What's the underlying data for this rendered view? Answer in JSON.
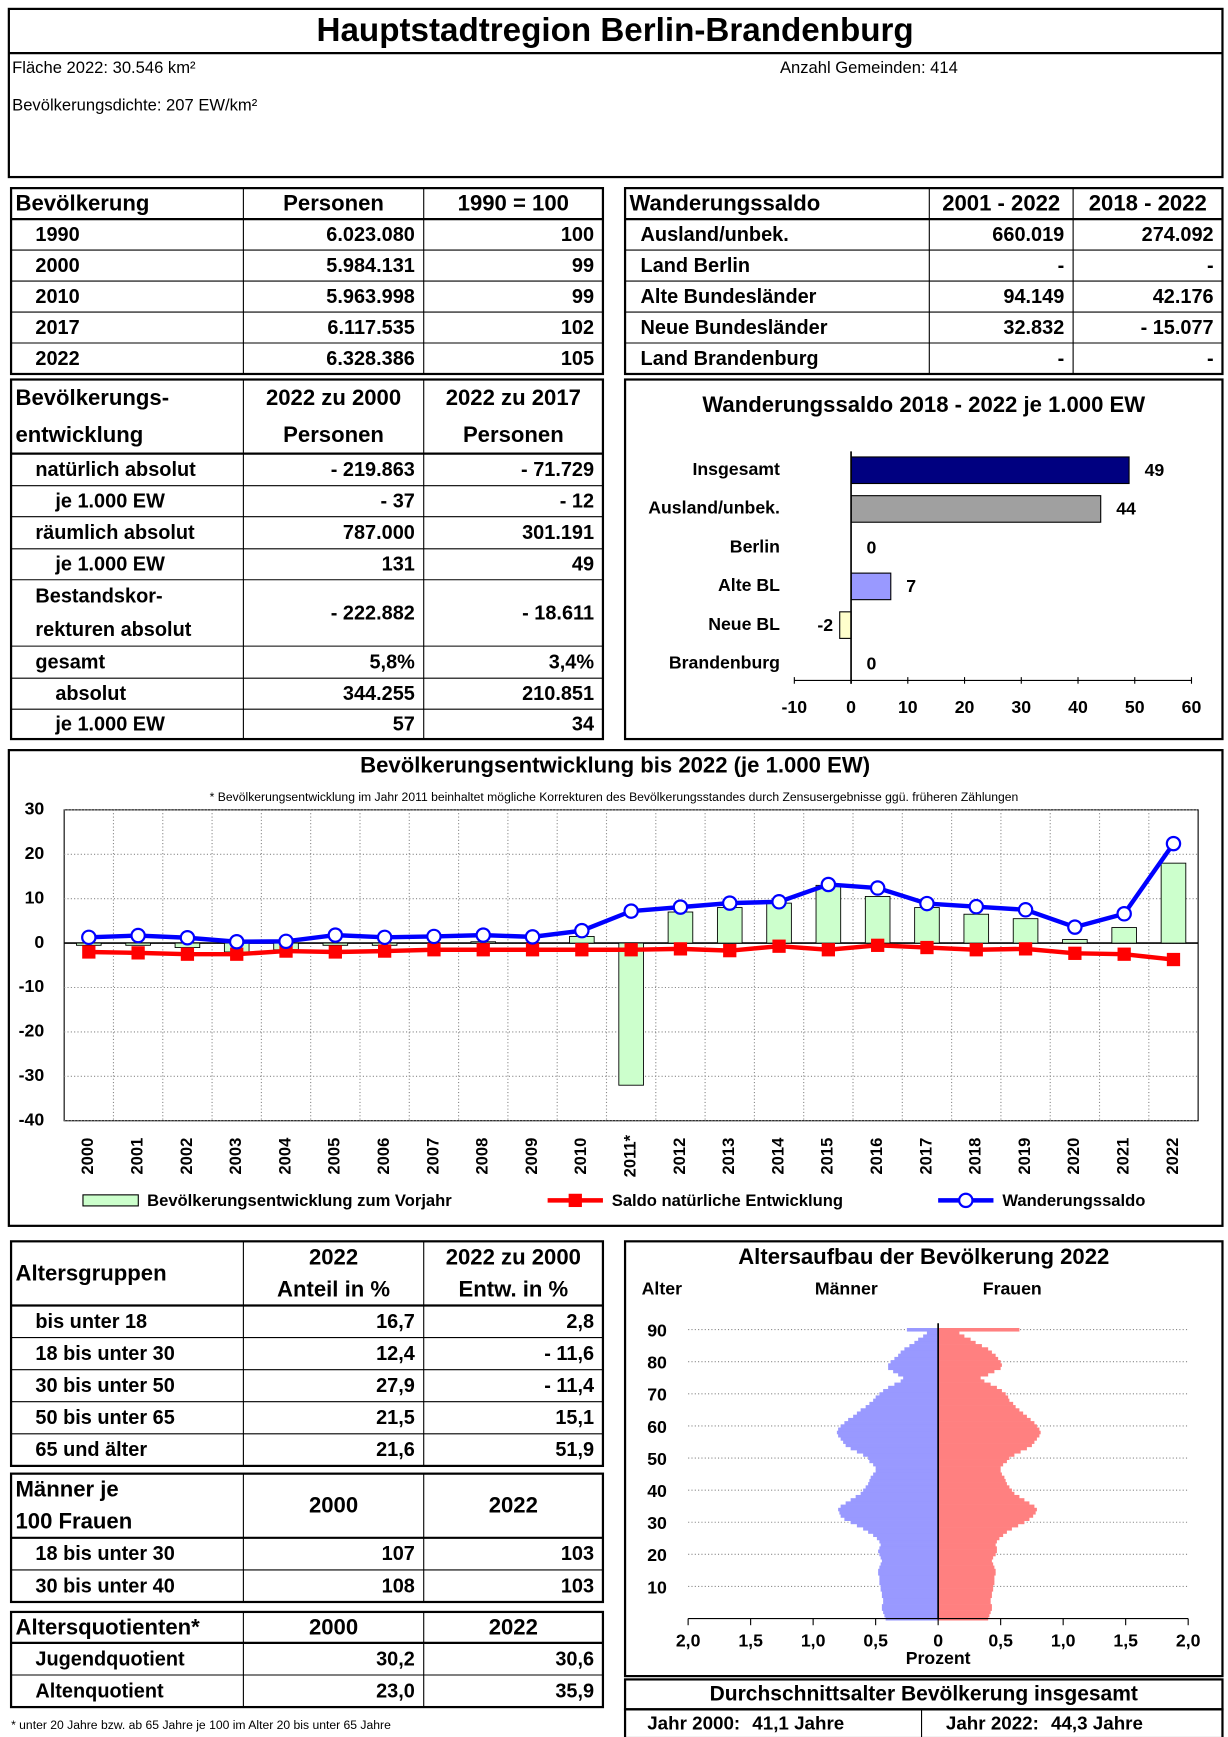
{
  "header": {
    "title": "Hauptstadtregion Berlin-Brandenburg",
    "area": "Fläche 2022: 30.546 km²",
    "municipalities": "Anzahl Gemeinden: 414",
    "density": "Bevölkerungsdichte: 207 EW/km²"
  },
  "population": {
    "header": [
      "Bevölkerung",
      "Personen",
      "1990 = 100"
    ],
    "rows": [
      [
        "1990",
        "6.023.080",
        "100"
      ],
      [
        "2000",
        "5.984.131",
        "99"
      ],
      [
        "2010",
        "5.963.998",
        "99"
      ],
      [
        "2017",
        "6.117.535",
        "102"
      ],
      [
        "2022",
        "6.328.386",
        "105"
      ]
    ]
  },
  "migration": {
    "header": [
      "Wanderungssaldo",
      "2001 - 2022",
      "2018 - 2022"
    ],
    "rows": [
      [
        "Ausland/unbek.",
        "660.019",
        "274.092"
      ],
      [
        "Land Berlin",
        "-",
        "-"
      ],
      [
        "Alte Bundesländer",
        "94.149",
        "42.176"
      ],
      [
        "Neue Bundesländer",
        "32.832",
        "- 15.077"
      ],
      [
        "Land Brandenburg",
        "-",
        "-"
      ]
    ]
  },
  "development": {
    "header": [
      [
        "Bevölkerungs-",
        "entwicklung"
      ],
      [
        "2022 zu 2000",
        "Personen"
      ],
      [
        "2022 zu 2017",
        "Personen"
      ]
    ],
    "rows": [
      [
        "natürlich absolut",
        "- 219.863",
        "- 71.729"
      ],
      [
        "je 1.000 EW",
        "- 37",
        "- 12"
      ],
      [
        "räumlich absolut",
        "787.000",
        "301.191"
      ],
      [
        "je 1.000 EW",
        "131",
        "49"
      ],
      [
        [
          "Bestandskor-",
          "rekturen absolut"
        ],
        "- 222.882",
        "- 18.611"
      ],
      [
        "gesamt",
        "5,8%",
        "3,4%"
      ],
      [
        "absolut",
        "344.255",
        "210.851"
      ],
      [
        "je 1.000 EW",
        "57",
        "34"
      ]
    ]
  },
  "age_groups": {
    "header": [
      [
        "Altersgruppen"
      ],
      [
        "2022",
        "Anteil in %"
      ],
      [
        "2022 zu 2000",
        "Entw. in %"
      ]
    ],
    "rows": [
      [
        "bis unter 18",
        "16,7",
        "2,8"
      ],
      [
        "18 bis unter 30",
        "12,4",
        "- 11,6"
      ],
      [
        "30 bis unter 50",
        "27,9",
        "- 11,4"
      ],
      [
        "50 bis unter 65",
        "21,5",
        "15,1"
      ],
      [
        "65 und älter",
        "21,6",
        "51,9"
      ]
    ]
  },
  "sex_ratio": {
    "header": [
      [
        "Männer je",
        "100 Frauen"
      ],
      "2000",
      "2022"
    ],
    "rows": [
      [
        "18 bis unter 30",
        "107",
        "103"
      ],
      [
        "30 bis unter 40",
        "108",
        "103"
      ]
    ]
  },
  "age_ratios": {
    "header": [
      "Altersquotienten*",
      "2000",
      "2022"
    ],
    "rows": [
      [
        "Jugendquotient",
        "30,2",
        "30,6"
      ],
      [
        "Altenquotient",
        "23,0",
        "35,9"
      ]
    ],
    "footnote": "* unter 20 Jahre bzw. ab 65 Jahre je 100 im Alter 20 bis unter 65 Jahre"
  },
  "mean_age": {
    "title": "Durchschnittsalter Bevölkerung insgesamt",
    "cells": [
      [
        "Jahr 2000:",
        "41,1 Jahre"
      ],
      [
        "Jahr 2022:",
        "44,3 Jahre"
      ]
    ]
  },
  "chart_data": [
    {
      "type": "hbar",
      "title": "Wanderungssaldo 2018 - 2022 je 1.000 EW",
      "categories": [
        "Insgesamt",
        "Ausland/unbek.",
        "Berlin",
        "Alte BL",
        "Neue BL",
        "Brandenburg"
      ],
      "values": [
        49,
        44,
        0,
        7,
        -2,
        0
      ],
      "colors": [
        "#000080",
        "#a0a0a0",
        "#ffffff",
        "#9999ff",
        "#ffffcc",
        "#ffffff"
      ],
      "xlim": [
        -10,
        60
      ],
      "xticks": [
        -10,
        0,
        10,
        20,
        30,
        40,
        50,
        60
      ]
    },
    {
      "type": "combo",
      "title": "Bevölkerungsentwicklung bis 2022 (je 1.000 EW)",
      "note": "* Bevölkerungsentwicklung im Jahr 2011 beinhaltet mögliche Korrekturen des Bevölkerungsstandes durch Zensusergebnisse ggü. früheren Zählungen",
      "categories": [
        "2000",
        "2001",
        "2002",
        "2003",
        "2004",
        "2005",
        "2006",
        "2007",
        "2008",
        "2009",
        "2010",
        "2011*",
        "2012",
        "2013",
        "2014",
        "2015",
        "2016",
        "2017",
        "2018",
        "2019",
        "2020",
        "2021",
        "2022"
      ],
      "ylim": [
        -40,
        30
      ],
      "yticks": [
        -40,
        -30,
        -20,
        -10,
        0,
        10,
        20,
        30
      ],
      "grid": true,
      "series": [
        {
          "name": "Bevölkerungsentwicklung zum Vorjahr",
          "type": "bar",
          "color": "#ccffcc",
          "values": [
            -0.5,
            -0.5,
            -1,
            -2,
            -1.5,
            -0.5,
            -0.5,
            0,
            0.3,
            0,
            1.5,
            -32,
            7,
            8,
            9,
            13,
            10.5,
            8,
            6.5,
            5.5,
            0.8,
            3.5,
            18
          ]
        },
        {
          "name": "Saldo natürliche Entwicklung",
          "type": "line",
          "marker": "square",
          "color": "#ff0000",
          "values": [
            -2,
            -2.2,
            -2.5,
            -2.5,
            -1.8,
            -2,
            -1.8,
            -1.5,
            -1.5,
            -1.5,
            -1.5,
            -1.5,
            -1.3,
            -1.7,
            -0.7,
            -1.5,
            -0.5,
            -1,
            -1.5,
            -1.3,
            -2.3,
            -2.5,
            -3.7
          ]
        },
        {
          "name": "Wanderungssaldo",
          "type": "line",
          "marker": "circle",
          "color": "#0000ff",
          "values": [
            1.3,
            1.7,
            1.2,
            0.3,
            0.4,
            1.8,
            1.3,
            1.5,
            1.8,
            1.4,
            2.8,
            7.2,
            8.1,
            9,
            9.3,
            13.2,
            12.4,
            8.9,
            8.2,
            7.5,
            3.6,
            6.6,
            22.4
          ]
        }
      ]
    },
    {
      "type": "pyramid",
      "title": "Altersaufbau der Bevölkerung 2022",
      "ylabel": "Alter",
      "xlabel": "Prozent",
      "ylim": [
        0,
        92
      ],
      "yticks": [
        10,
        20,
        30,
        40,
        50,
        60,
        70,
        80,
        90
      ],
      "xlim": [
        -2,
        2
      ],
      "xticks": [
        {
          "value": -2,
          "label": "2,0"
        },
        {
          "value": -1.5,
          "label": "1,5"
        },
        {
          "value": -1,
          "label": "1,0"
        },
        {
          "value": -0.5,
          "label": "0,5"
        },
        0,
        {
          "value": 0.5,
          "label": "0,5"
        },
        {
          "value": 1,
          "label": "1,0"
        },
        {
          "value": 1.5,
          "label": "1,5"
        },
        {
          "value": 2,
          "label": "2,0"
        }
      ],
      "ages": [
        0,
        1,
        2,
        3,
        4,
        5,
        6,
        7,
        8,
        9,
        10,
        11,
        12,
        13,
        14,
        15,
        16,
        17,
        18,
        19,
        20,
        21,
        22,
        23,
        24,
        25,
        26,
        27,
        28,
        29,
        30,
        31,
        32,
        33,
        34,
        35,
        36,
        37,
        38,
        39,
        40,
        41,
        42,
        43,
        44,
        45,
        46,
        47,
        48,
        49,
        50,
        51,
        52,
        53,
        54,
        55,
        56,
        57,
        58,
        59,
        60,
        61,
        62,
        63,
        64,
        65,
        66,
        67,
        68,
        69,
        70,
        71,
        72,
        73,
        74,
        75,
        76,
        77,
        78,
        79,
        80,
        81,
        82,
        83,
        84,
        85,
        86,
        87,
        88,
        89,
        90
      ],
      "series": [
        {
          "name": "Männer",
          "side": "left",
          "color": "#9999ff",
          "values": [
            0.42,
            0.43,
            0.44,
            0.45,
            0.45,
            0.44,
            0.44,
            0.45,
            0.45,
            0.46,
            0.46,
            0.47,
            0.47,
            0.47,
            0.48,
            0.48,
            0.47,
            0.46,
            0.45,
            0.46,
            0.47,
            0.48,
            0.47,
            0.46,
            0.47,
            0.49,
            0.52,
            0.56,
            0.6,
            0.65,
            0.7,
            0.75,
            0.78,
            0.79,
            0.8,
            0.78,
            0.74,
            0.7,
            0.66,
            0.62,
            0.6,
            0.58,
            0.56,
            0.55,
            0.54,
            0.52,
            0.5,
            0.5,
            0.52,
            0.55,
            0.56,
            0.6,
            0.65,
            0.7,
            0.74,
            0.76,
            0.78,
            0.8,
            0.81,
            0.8,
            0.78,
            0.75,
            0.72,
            0.68,
            0.65,
            0.62,
            0.58,
            0.55,
            0.52,
            0.5,
            0.47,
            0.44,
            0.4,
            0.35,
            0.3,
            0.28,
            0.32,
            0.36,
            0.4,
            0.4,
            0.38,
            0.35,
            0.32,
            0.3,
            0.27,
            0.23,
            0.19,
            0.16,
            0.12,
            0.09,
            0.25
          ]
        },
        {
          "name": "Frauen",
          "side": "right",
          "color": "#ff8080",
          "values": [
            0.4,
            0.41,
            0.42,
            0.43,
            0.43,
            0.42,
            0.42,
            0.43,
            0.43,
            0.44,
            0.44,
            0.45,
            0.45,
            0.45,
            0.46,
            0.46,
            0.45,
            0.44,
            0.43,
            0.44,
            0.46,
            0.47,
            0.47,
            0.46,
            0.47,
            0.49,
            0.52,
            0.55,
            0.59,
            0.64,
            0.69,
            0.73,
            0.76,
            0.78,
            0.79,
            0.77,
            0.73,
            0.69,
            0.65,
            0.61,
            0.59,
            0.57,
            0.55,
            0.54,
            0.53,
            0.51,
            0.5,
            0.5,
            0.52,
            0.55,
            0.57,
            0.61,
            0.66,
            0.71,
            0.75,
            0.77,
            0.79,
            0.81,
            0.82,
            0.81,
            0.79,
            0.77,
            0.74,
            0.71,
            0.68,
            0.65,
            0.62,
            0.6,
            0.57,
            0.56,
            0.54,
            0.51,
            0.47,
            0.42,
            0.37,
            0.34,
            0.4,
            0.45,
            0.5,
            0.51,
            0.5,
            0.48,
            0.46,
            0.43,
            0.4,
            0.35,
            0.3,
            0.26,
            0.21,
            0.17,
            0.65
          ]
        }
      ]
    }
  ]
}
